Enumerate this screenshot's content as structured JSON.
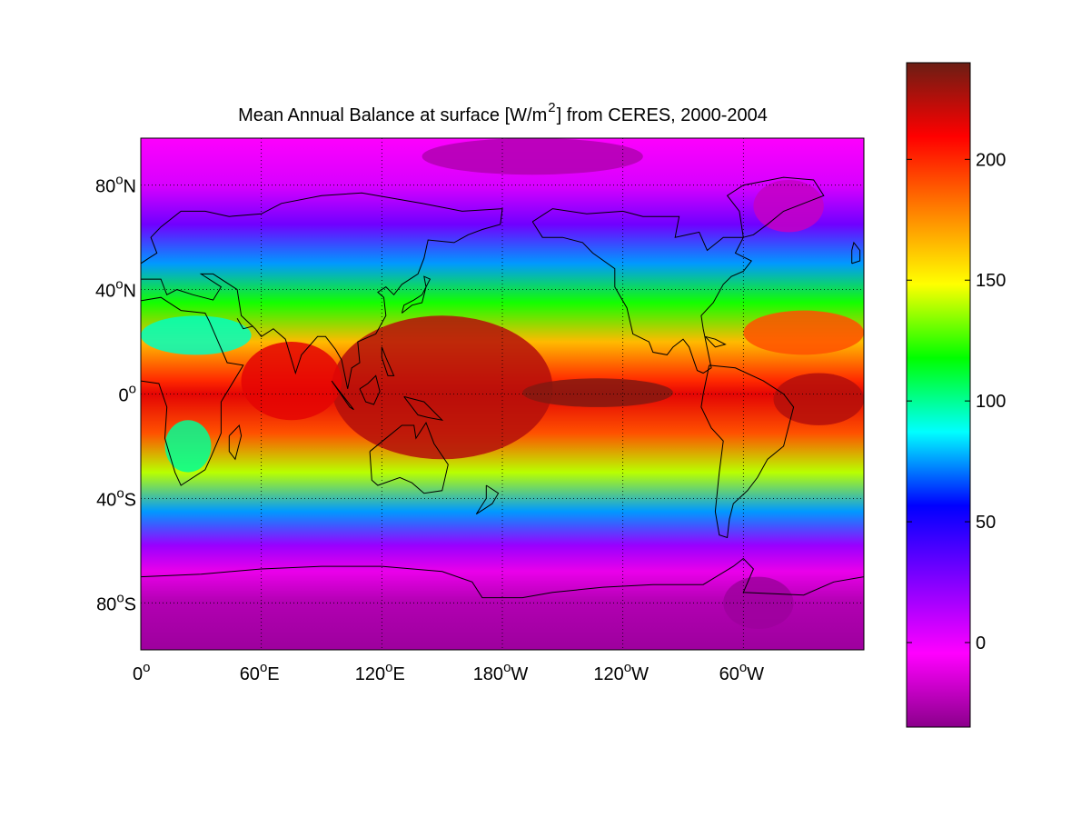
{
  "title": {
    "before": "Mean Annual Balance at surface [W/m",
    "superscript": "2",
    "after": "] from CERES, 2000-2004"
  },
  "chart_data": {
    "type": "heatmap",
    "map_projection": "equirectangular",
    "xlabel": "",
    "ylabel": "",
    "lon_range": [
      0,
      360
    ],
    "lat_range": [
      -98,
      98
    ],
    "x_tick_labels": [
      {
        "lon": 0,
        "deg": "0",
        "hem": ""
      },
      {
        "lon": 60,
        "deg": "60",
        "hem": "E"
      },
      {
        "lon": 120,
        "deg": "120",
        "hem": "E"
      },
      {
        "lon": 180,
        "deg": "180",
        "hem": "W"
      },
      {
        "lon": 240,
        "deg": "120",
        "hem": "W"
      },
      {
        "lon": 300,
        "deg": "60",
        "hem": "W"
      }
    ],
    "y_tick_labels": [
      {
        "lat": 80,
        "deg": "80",
        "hem": "N"
      },
      {
        "lat": 40,
        "deg": "40",
        "hem": "N"
      },
      {
        "lat": 0,
        "deg": "0",
        "hem": ""
      },
      {
        "lat": -40,
        "deg": "40",
        "hem": "S"
      },
      {
        "lat": -80,
        "deg": "80",
        "hem": "S"
      }
    ],
    "grid": "dotted",
    "coastlines": true,
    "colorbar": {
      "range": [
        -35,
        240
      ],
      "ticks": [
        0,
        50,
        100,
        150,
        200
      ],
      "tick_labels": [
        "0",
        "50",
        "100",
        "150",
        "200"
      ],
      "location": "right",
      "colormap": [
        "#8b008b",
        "#ff00ff",
        "#8000ff",
        "#0000ff",
        "#00ffff",
        "#00ff00",
        "#ffff00",
        "#ff8000",
        "#ff0000",
        "#6b1e14"
      ]
    },
    "zonal_mean_profile": [
      {
        "lat": 98,
        "value": -5
      },
      {
        "lat": 80,
        "value": 5
      },
      {
        "lat": 65,
        "value": 30
      },
      {
        "lat": 50,
        "value": 75
      },
      {
        "lat": 35,
        "value": 120
      },
      {
        "lat": 20,
        "value": 165
      },
      {
        "lat": 5,
        "value": 200
      },
      {
        "lat": 0,
        "value": 215
      },
      {
        "lat": -15,
        "value": 190
      },
      {
        "lat": -30,
        "value": 140
      },
      {
        "lat": -45,
        "value": 75
      },
      {
        "lat": -58,
        "value": 20
      },
      {
        "lat": -68,
        "value": -10
      },
      {
        "lat": -80,
        "value": -25
      },
      {
        "lat": -98,
        "value": -30
      }
    ],
    "regional_features": [
      {
        "name": "western_pacific_warm_pool",
        "lon": [
          95,
          205
        ],
        "lat": [
          -25,
          30
        ],
        "value": 225
      },
      {
        "name": "central_east_pacific_equator",
        "lon": [
          190,
          265
        ],
        "lat": [
          -5,
          6
        ],
        "value": 235
      },
      {
        "name": "indian_ocean",
        "lon": [
          50,
          100
        ],
        "lat": [
          -10,
          20
        ],
        "value": 215
      },
      {
        "name": "equatorial_atlantic",
        "lon": [
          315,
          360
        ],
        "lat": [
          -12,
          8
        ],
        "value": 225
      },
      {
        "name": "greenland",
        "lon": [
          305,
          340
        ],
        "lat": [
          62,
          82
        ],
        "value": -20
      },
      {
        "name": "arctic_ocean_cap",
        "lon": [
          140,
          250
        ],
        "lat": [
          84,
          98
        ],
        "value": -25
      },
      {
        "name": "antarctica_peninsula",
        "lon": [
          290,
          325
        ],
        "lat": [
          -90,
          -70
        ],
        "value": -30
      },
      {
        "name": "north_atlantic_subtropics",
        "lon": [
          300,
          360
        ],
        "lat": [
          15,
          32
        ],
        "value": 190
      },
      {
        "name": "sahara_arabia",
        "lon": [
          0,
          55
        ],
        "lat": [
          15,
          30
        ],
        "value": 95
      },
      {
        "name": "southern_africa",
        "lon": [
          12,
          35
        ],
        "lat": [
          -30,
          -10
        ],
        "value": 100
      }
    ]
  }
}
